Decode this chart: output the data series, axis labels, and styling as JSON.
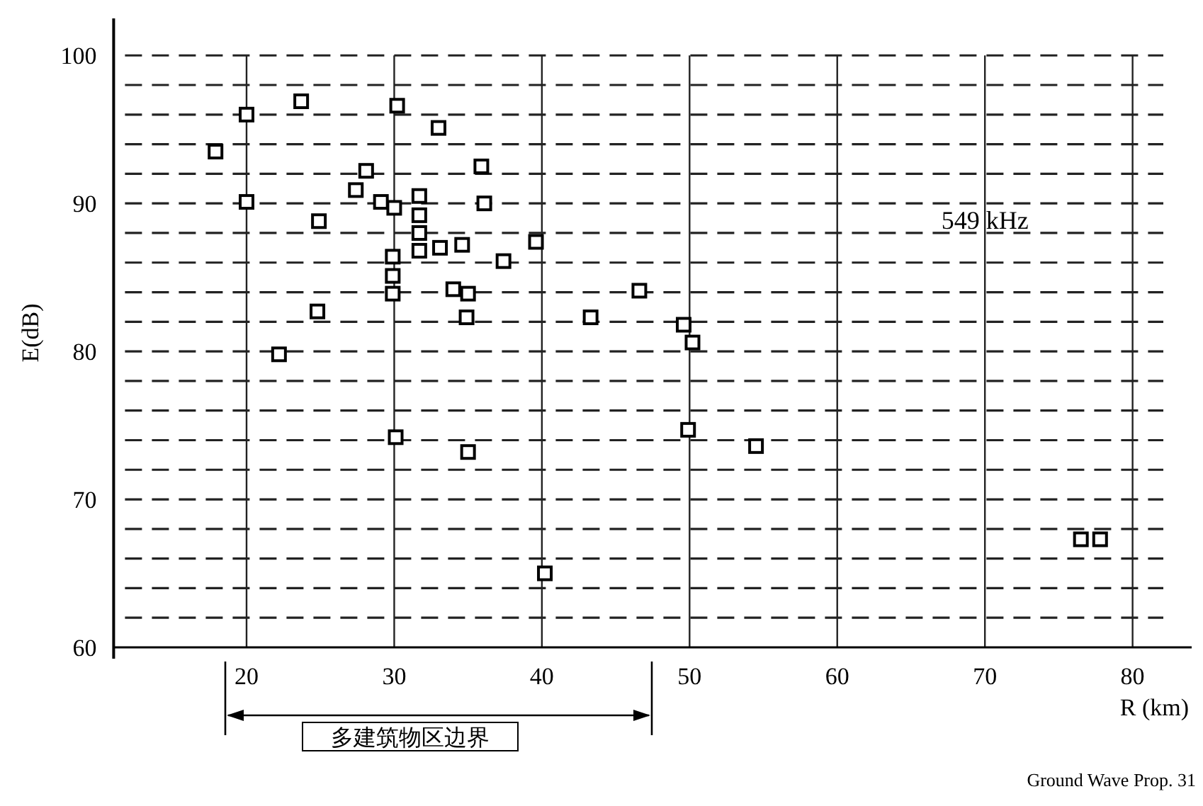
{
  "chart_data": {
    "type": "scatter",
    "xlabel": "R (km)",
    "ylabel": "E(dB)",
    "xlim": [
      11,
      84
    ],
    "ylim": [
      60,
      102.5
    ],
    "xticks": [
      20,
      30,
      40,
      50,
      60,
      70,
      80
    ],
    "yticks": [
      60,
      {
        "value": 62,
        "label": null
      },
      {
        "value": 64,
        "label": null
      },
      {
        "value": 66,
        "label": null
      },
      {
        "value": 68,
        "label": null
      },
      70,
      {
        "value": 72,
        "label": null
      },
      {
        "value": 74,
        "label": null
      },
      {
        "value": 76,
        "label": null
      },
      {
        "value": 78,
        "label": null
      },
      80,
      {
        "value": 82,
        "label": null
      },
      {
        "value": 84,
        "label": null
      },
      {
        "value": 86,
        "label": null
      },
      {
        "value": 88,
        "label": null
      },
      90,
      {
        "value": 92,
        "label": null
      },
      {
        "value": 94,
        "label": null
      },
      {
        "value": 96,
        "label": null
      },
      {
        "value": 98,
        "label": null
      },
      100
    ],
    "grid": true,
    "marker": "square",
    "line_style": "dashed",
    "series": [
      {
        "color": "#000000",
        "x": [
          17.9,
          20.0,
          20.0,
          23.7,
          24.9,
          30.2,
          33.0,
          28.1,
          27.4,
          29.1,
          30.0,
          31.7,
          31.7,
          31.7,
          31.7,
          33.1,
          34.6,
          35.9,
          36.1,
          37.4,
          39.6,
          29.9,
          29.9,
          29.9,
          34.0,
          35.0,
          34.9,
          24.8,
          22.2,
          46.6,
          43.3,
          49.6,
          50.2,
          30.1,
          35.0,
          49.9,
          54.5,
          40.2,
          76.5,
          77.8
        ],
        "values": [
          93.5,
          96.0,
          90.1,
          96.9,
          88.8,
          96.6,
          95.1,
          92.2,
          90.9,
          90.1,
          89.7,
          90.5,
          89.2,
          88.0,
          86.8,
          87.0,
          87.2,
          92.5,
          90.0,
          86.1,
          87.4,
          86.4,
          85.1,
          83.9,
          84.2,
          83.9,
          82.3,
          82.7,
          79.8,
          84.1,
          82.3,
          81.8,
          80.6,
          74.2,
          73.2,
          74.7,
          73.6,
          65.0,
          67.3,
          67.3
        ]
      }
    ],
    "annotations": [
      "549 kHz",
      "Ground Wave Prop. 31",
      "多建筑物区边界"
    ]
  }
}
